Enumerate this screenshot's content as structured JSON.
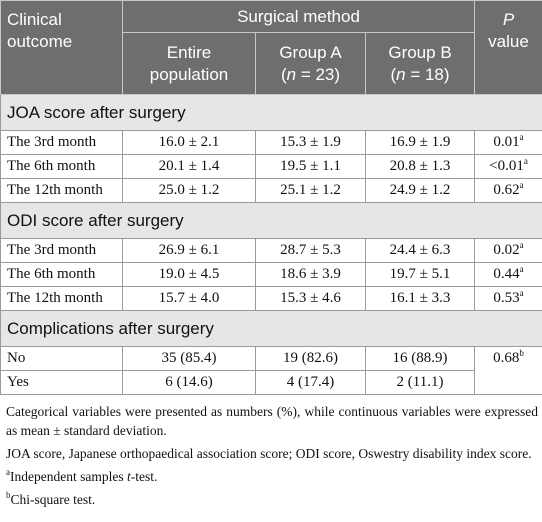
{
  "header": {
    "outcome": "Clinical outcome",
    "method": "Surgical method",
    "entire": "Entire population",
    "group_a_name": "Group A",
    "group_a_n": "(n = 23)",
    "group_b_name": "Group B",
    "group_b_n": "(n = 18)",
    "p_letter": "P",
    "p_value": "value"
  },
  "sections": [
    {
      "title": "JOA score after surgery",
      "rows": [
        {
          "label": "The 3rd month",
          "entire": "16.0 ± 2.1",
          "a": "15.3 ± 1.9",
          "b": "16.9 ± 1.9",
          "p": "0.01",
          "sup": "a"
        },
        {
          "label": "The 6th month",
          "entire": "20.1 ± 1.4",
          "a": "19.5 ± 1.1",
          "b": "20.8 ± 1.3",
          "p": "<0.01",
          "sup": "a"
        },
        {
          "label": "The 12th month",
          "entire": "25.0 ± 1.2",
          "a": "25.1 ± 1.2",
          "b": "24.9 ± 1.2",
          "p": "0.62",
          "sup": "a"
        }
      ]
    },
    {
      "title": "ODI score after surgery",
      "rows": [
        {
          "label": "The 3rd month",
          "entire": "26.9 ± 6.1",
          "a": "28.7 ± 5.3",
          "b": "24.4 ± 6.3",
          "p": "0.02",
          "sup": "a"
        },
        {
          "label": "The 6th month",
          "entire": "19.0 ± 4.5",
          "a": "18.6 ± 3.9",
          "b": "19.7 ± 5.1",
          "p": "0.44",
          "sup": "a"
        },
        {
          "label": "The 12th month",
          "entire": "15.7 ± 4.0",
          "a": "15.3 ± 4.6",
          "b": "16.1 ± 3.3",
          "p": "0.53",
          "sup": "a"
        }
      ]
    },
    {
      "title": "Complications after surgery",
      "rows": [
        {
          "label": "No",
          "entire": "35 (85.4)",
          "a": "19 (82.6)",
          "b": "16 (88.9)",
          "p": "0.68",
          "sup": "b"
        },
        {
          "label": "Yes",
          "entire": "6 (14.6)",
          "a": "4 (17.4)",
          "b": "2 (11.1)"
        }
      ]
    }
  ],
  "notes": {
    "n1": "Categorical variables were presented as numbers (%), while continuous variables were expressed as mean ± standard deviation.",
    "n2": "JOA score, Japanese orthopaedical association score; ODI score, Oswestry disability index score.",
    "n3_sup": "a",
    "n3_pre": "Independent samples ",
    "n3_t": "t",
    "n3_post": "-test.",
    "n4_sup": "b",
    "n4": "Chi-square test."
  }
}
